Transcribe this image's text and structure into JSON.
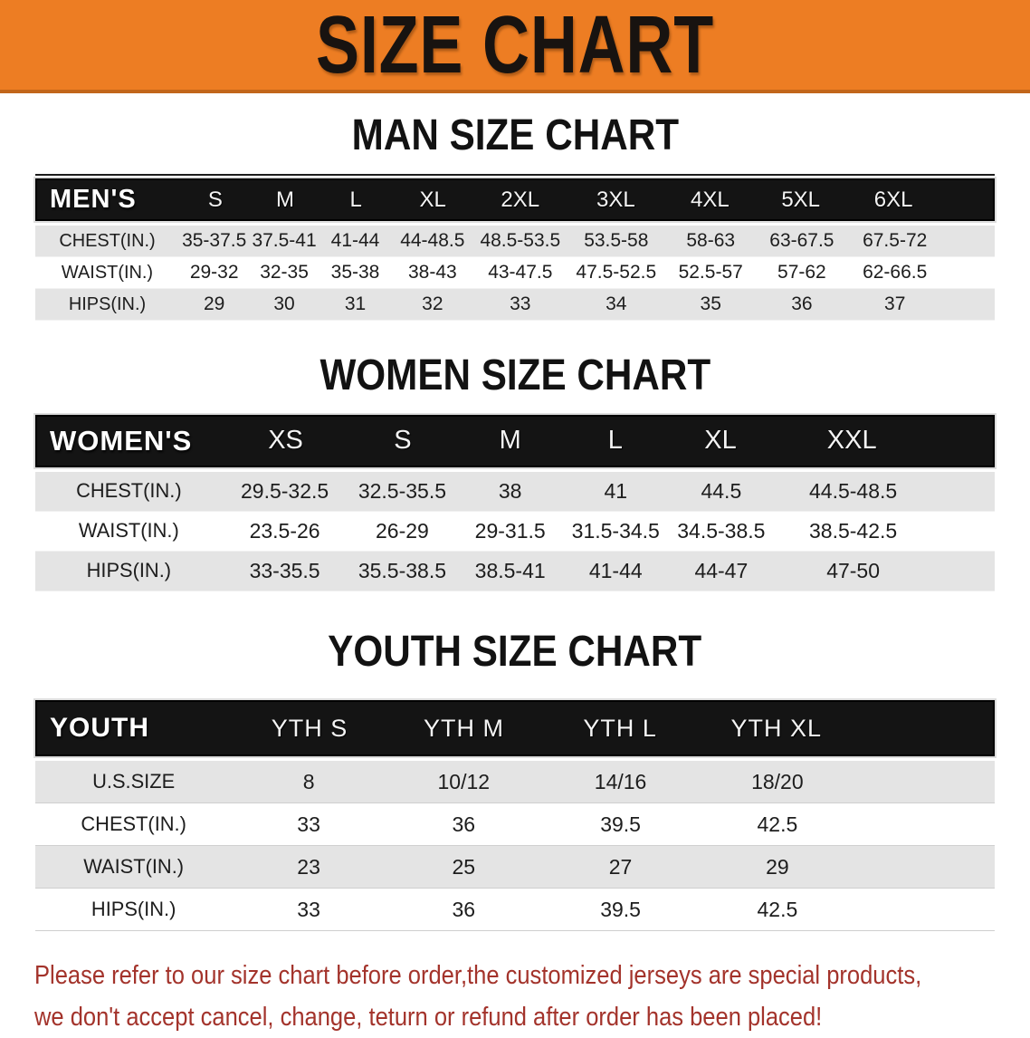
{
  "banner": {
    "title": "SIZE CHART"
  },
  "men": {
    "heading": "MAN SIZE CHART",
    "header": [
      "MEN'S",
      "S",
      "M",
      "L",
      "XL",
      "2XL",
      "3XL",
      "4XL",
      "5XL",
      "6XL"
    ],
    "rows": [
      {
        "label": "CHEST(IN.)",
        "values": [
          "35-37.5",
          "37.5-41",
          "41-44",
          "44-48.5",
          "48.5-53.5",
          "53.5-58",
          "58-63",
          "63-67.5",
          "67.5-72"
        ]
      },
      {
        "label": "WAIST(IN.)",
        "values": [
          "29-32",
          "32-35",
          "35-38",
          "38-43",
          "43-47.5",
          "47.5-52.5",
          "52.5-57",
          "57-62",
          "62-66.5"
        ]
      },
      {
        "label": "HIPS(IN.)",
        "values": [
          "29",
          "30",
          "31",
          "32",
          "33",
          "34",
          "35",
          "36",
          "37"
        ]
      }
    ]
  },
  "women": {
    "heading": "WOMEN SIZE CHART",
    "header": [
      "WOMEN'S",
      "XS",
      "S",
      "M",
      "L",
      "XL",
      "XXL"
    ],
    "rows": [
      {
        "label": "CHEST(IN.)",
        "values": [
          "29.5-32.5",
          "32.5-35.5",
          "38",
          "41",
          "44.5",
          "44.5-48.5"
        ]
      },
      {
        "label": "WAIST(IN.)",
        "values": [
          "23.5-26",
          "26-29",
          "29-31.5",
          "31.5-34.5",
          "34.5-38.5",
          "38.5-42.5"
        ]
      },
      {
        "label": "HIPS(IN.)",
        "values": [
          "33-35.5",
          "35.5-38.5",
          "38.5-41",
          "41-44",
          "44-47",
          "47-50"
        ]
      }
    ]
  },
  "youth": {
    "heading": "YOUTH SIZE CHART",
    "header": [
      "YOUTH",
      "YTH S",
      "YTH M",
      "YTH L",
      "YTH XL"
    ],
    "rows": [
      {
        "label": "U.S.SIZE",
        "values": [
          "8",
          "10/12",
          "14/16",
          "18/20"
        ]
      },
      {
        "label": "CHEST(IN.)",
        "values": [
          "33",
          "36",
          "39.5",
          "42.5"
        ]
      },
      {
        "label": "WAIST(IN.)",
        "values": [
          "23",
          "25",
          "27",
          "29"
        ]
      },
      {
        "label": "HIPS(IN.)",
        "values": [
          "33",
          "36",
          "39.5",
          "42.5"
        ]
      }
    ]
  },
  "footer": {
    "line1": "Please refer to our size chart before order,the customized jerseys are special products,",
    "line2": "we don't accept cancel, change, teturn or refund after order has been placed!"
  },
  "colors": {
    "banner_orange": "#ED7D23",
    "banner_edge": "#C2661A",
    "header_bar_black": "#141414",
    "row_gray": "#E4E4E4",
    "note_red": "#A3332B"
  }
}
